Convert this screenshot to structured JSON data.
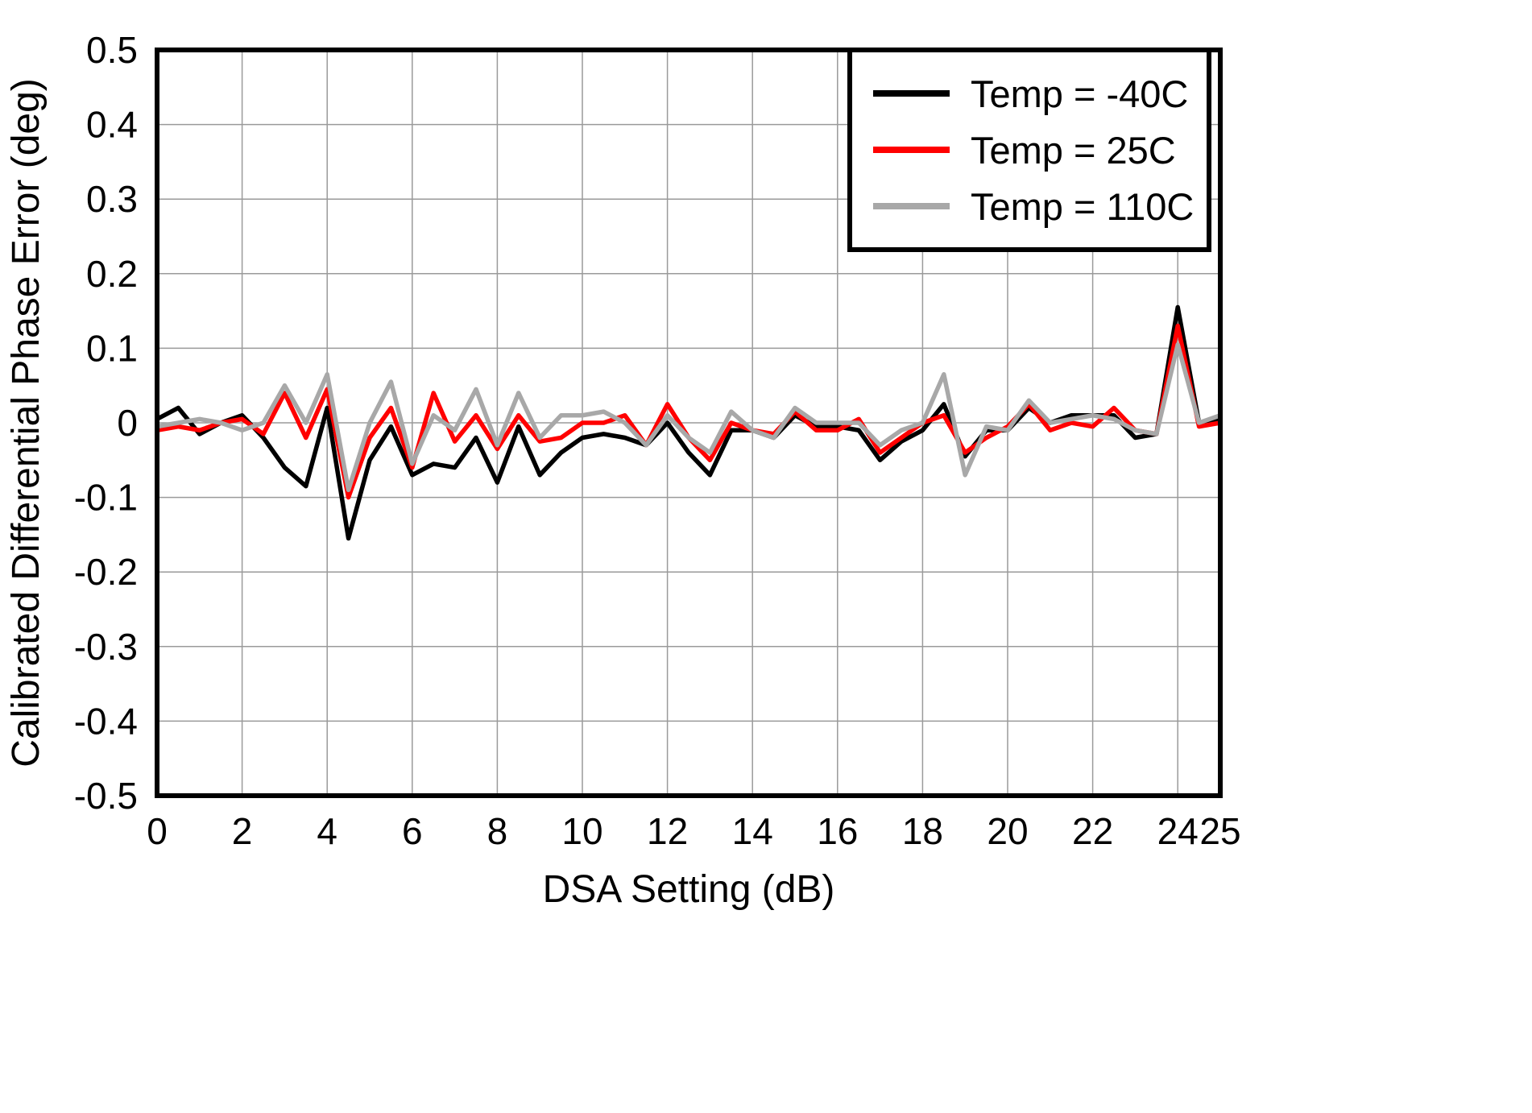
{
  "page": {
    "background": "#ffffff"
  },
  "chart_data": {
    "type": "line",
    "title": "",
    "xlabel": "DSA Setting (dB)",
    "ylabel": "Calibrated Differential Phase Error (deg)",
    "xlim": [
      0,
      25
    ],
    "ylim": [
      -0.5,
      0.5
    ],
    "grid": true,
    "grid_color": "#9a9a9a",
    "frame_color": "#000000",
    "legend_position": "top-right",
    "xticks": [
      0,
      2,
      4,
      6,
      8,
      10,
      12,
      14,
      16,
      18,
      20,
      22,
      24,
      25
    ],
    "xtick_labels": [
      "0",
      "2",
      "4",
      "6",
      "8",
      "10",
      "12",
      "14",
      "16",
      "18",
      "20",
      "22",
      "24",
      "25"
    ],
    "yticks": [
      -0.5,
      -0.4,
      -0.3,
      -0.2,
      -0.1,
      0,
      0.1,
      0.2,
      0.3,
      0.4,
      0.5
    ],
    "ytick_labels": [
      "-0.5",
      "-0.4",
      "-0.3",
      "-0.2",
      "-0.1",
      "0",
      "0.1",
      "0.2",
      "0.3",
      "0.4",
      "0.5"
    ],
    "x": [
      0,
      0.5,
      1,
      1.5,
      2,
      2.5,
      3,
      3.5,
      4,
      4.5,
      5,
      5.5,
      6,
      6.5,
      7,
      7.5,
      8,
      8.5,
      9,
      9.5,
      10,
      10.5,
      11,
      11.5,
      12,
      12.5,
      13,
      13.5,
      14,
      14.5,
      15,
      15.5,
      16,
      16.5,
      17,
      17.5,
      18,
      18.5,
      19,
      19.5,
      20,
      20.5,
      21,
      21.5,
      22,
      22.5,
      23,
      23.5,
      24,
      24.5,
      25
    ],
    "series": [
      {
        "name": "Temp = -40C",
        "color": "#000000",
        "values": [
          0.005,
          0.02,
          -0.015,
          0.0,
          0.01,
          -0.02,
          -0.06,
          -0.085,
          0.02,
          -0.155,
          -0.05,
          -0.005,
          -0.07,
          -0.055,
          -0.06,
          -0.02,
          -0.08,
          -0.005,
          -0.07,
          -0.04,
          -0.02,
          -0.015,
          -0.02,
          -0.03,
          0.0,
          -0.04,
          -0.07,
          -0.01,
          -0.01,
          -0.02,
          0.01,
          -0.005,
          -0.005,
          -0.01,
          -0.05,
          -0.025,
          -0.01,
          0.025,
          -0.045,
          -0.01,
          -0.01,
          0.02,
          0.0,
          0.01,
          0.01,
          0.01,
          -0.02,
          -0.015,
          0.155,
          0.0,
          0.005
        ]
      },
      {
        "name": "Temp = 25C",
        "color": "#ff0000",
        "values": [
          -0.01,
          -0.005,
          -0.01,
          0.0,
          0.005,
          -0.015,
          0.04,
          -0.02,
          0.045,
          -0.1,
          -0.02,
          0.02,
          -0.06,
          0.04,
          -0.025,
          0.01,
          -0.035,
          0.01,
          -0.025,
          -0.02,
          0.0,
          0.0,
          0.01,
          -0.03,
          0.025,
          -0.02,
          -0.05,
          0.0,
          -0.01,
          -0.015,
          0.015,
          -0.01,
          -0.01,
          0.005,
          -0.04,
          -0.02,
          0.0,
          0.01,
          -0.04,
          -0.02,
          -0.005,
          0.025,
          -0.01,
          0.0,
          -0.005,
          0.02,
          -0.01,
          -0.015,
          0.13,
          -0.005,
          0.0
        ]
      },
      {
        "name": "Temp = 110C",
        "color": "#a8a8a8",
        "values": [
          -0.005,
          0.0,
          0.005,
          0.0,
          -0.01,
          0.0,
          0.05,
          0.0,
          0.065,
          -0.09,
          0.0,
          0.055,
          -0.055,
          0.01,
          -0.01,
          0.045,
          -0.03,
          0.04,
          -0.02,
          0.01,
          0.01,
          0.015,
          0.0,
          -0.03,
          0.01,
          -0.02,
          -0.04,
          0.015,
          -0.01,
          -0.02,
          0.02,
          0.0,
          0.0,
          0.0,
          -0.03,
          -0.01,
          0.0,
          0.065,
          -0.07,
          -0.005,
          -0.01,
          0.03,
          0.0,
          0.005,
          0.01,
          0.005,
          -0.01,
          -0.015,
          0.105,
          0.0,
          0.01
        ]
      }
    ]
  }
}
